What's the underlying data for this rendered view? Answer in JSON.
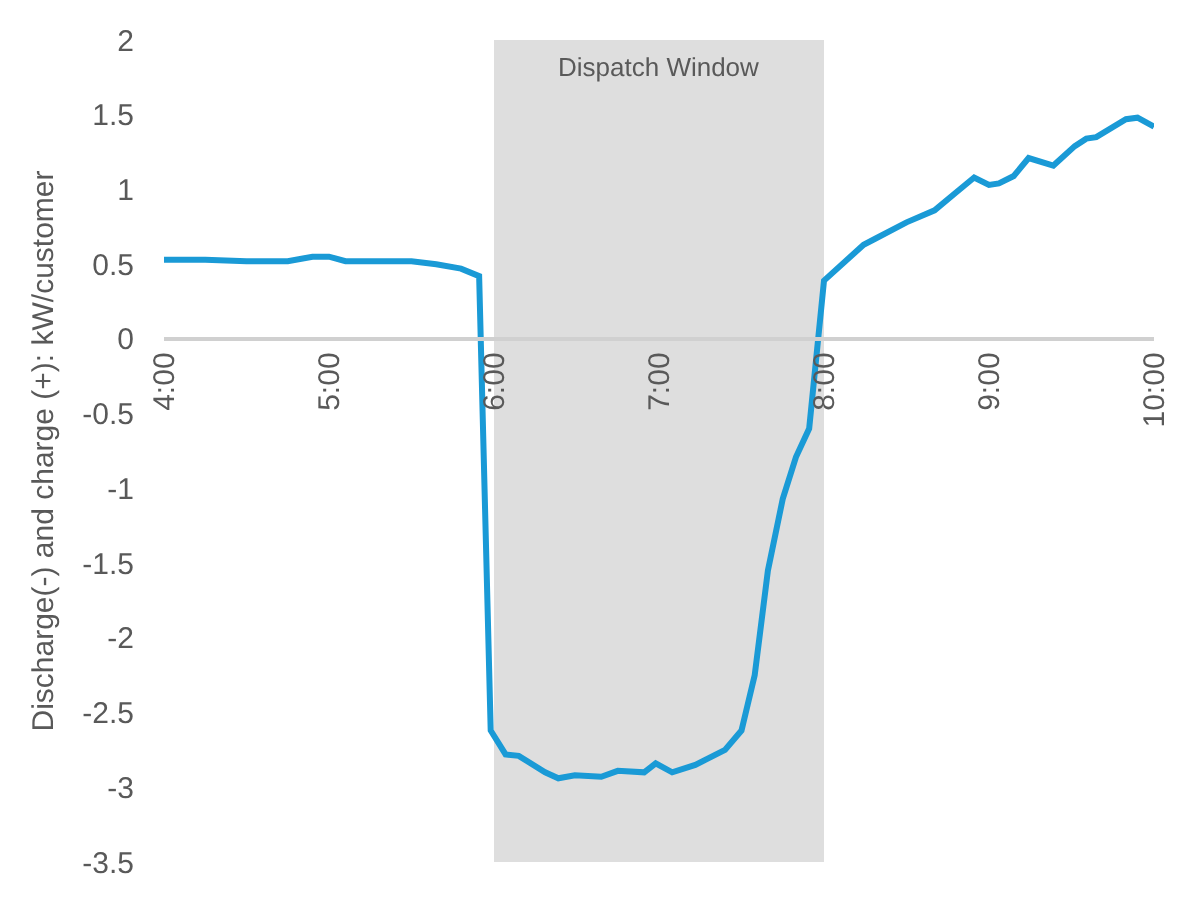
{
  "chart_data": {
    "type": "line",
    "ylabel": "Discharge(-) and charge (+): kW/customer",
    "x": [
      4.0,
      4.25,
      4.5,
      4.75,
      4.9,
      5.0,
      5.1,
      5.25,
      5.5,
      5.65,
      5.8,
      5.91,
      5.98,
      6.07,
      6.15,
      6.31,
      6.39,
      6.49,
      6.65,
      6.75,
      6.91,
      6.98,
      7.08,
      7.22,
      7.4,
      7.5,
      7.58,
      7.66,
      7.75,
      7.83,
      7.91,
      8.0,
      8.24,
      8.31,
      8.5,
      8.67,
      8.8,
      8.91,
      9.0,
      9.06,
      9.15,
      9.24,
      9.39,
      9.52,
      9.59,
      9.65,
      9.83,
      9.9,
      10.0
    ],
    "series": [
      {
        "color": "#1a9ad6",
        "values": [
          0.53,
          0.53,
          0.52,
          0.52,
          0.55,
          0.55,
          0.52,
          0.52,
          0.52,
          0.5,
          0.47,
          0.42,
          -2.62,
          -2.78,
          -2.79,
          -2.9,
          -2.94,
          -2.92,
          -2.93,
          -2.89,
          -2.9,
          -2.84,
          -2.9,
          -2.85,
          -2.75,
          -2.62,
          -2.25,
          -1.55,
          -1.07,
          -0.79,
          -0.6,
          0.39,
          0.63,
          0.67,
          0.78,
          0.86,
          0.98,
          1.08,
          1.03,
          1.04,
          1.09,
          1.21,
          1.16,
          1.29,
          1.34,
          1.35,
          1.47,
          1.48,
          1.42
        ]
      }
    ],
    "xlim": [
      4,
      10
    ],
    "xticks": [
      {
        "value": 4,
        "label": "4:00"
      },
      {
        "value": 5,
        "label": "5:00"
      },
      {
        "value": 6,
        "label": "6:00"
      },
      {
        "value": 7,
        "label": "7:00"
      },
      {
        "value": 8,
        "label": "8:00"
      },
      {
        "value": 9,
        "label": "9:00"
      },
      {
        "value": 10,
        "label": "10:00"
      }
    ],
    "ylim": [
      -3.5,
      2
    ],
    "yticks": [
      -3.5,
      -3,
      -2.5,
      -2,
      -1.5,
      -1,
      -0.5,
      0,
      0.5,
      1,
      1.5,
      2
    ],
    "bands": [
      {
        "axis": "x",
        "from": 6,
        "to": 8,
        "label": "Dispatch Window",
        "color": "#dedede"
      }
    ],
    "grid": false,
    "legend": false,
    "marker": "none",
    "line_style": "solid"
  }
}
